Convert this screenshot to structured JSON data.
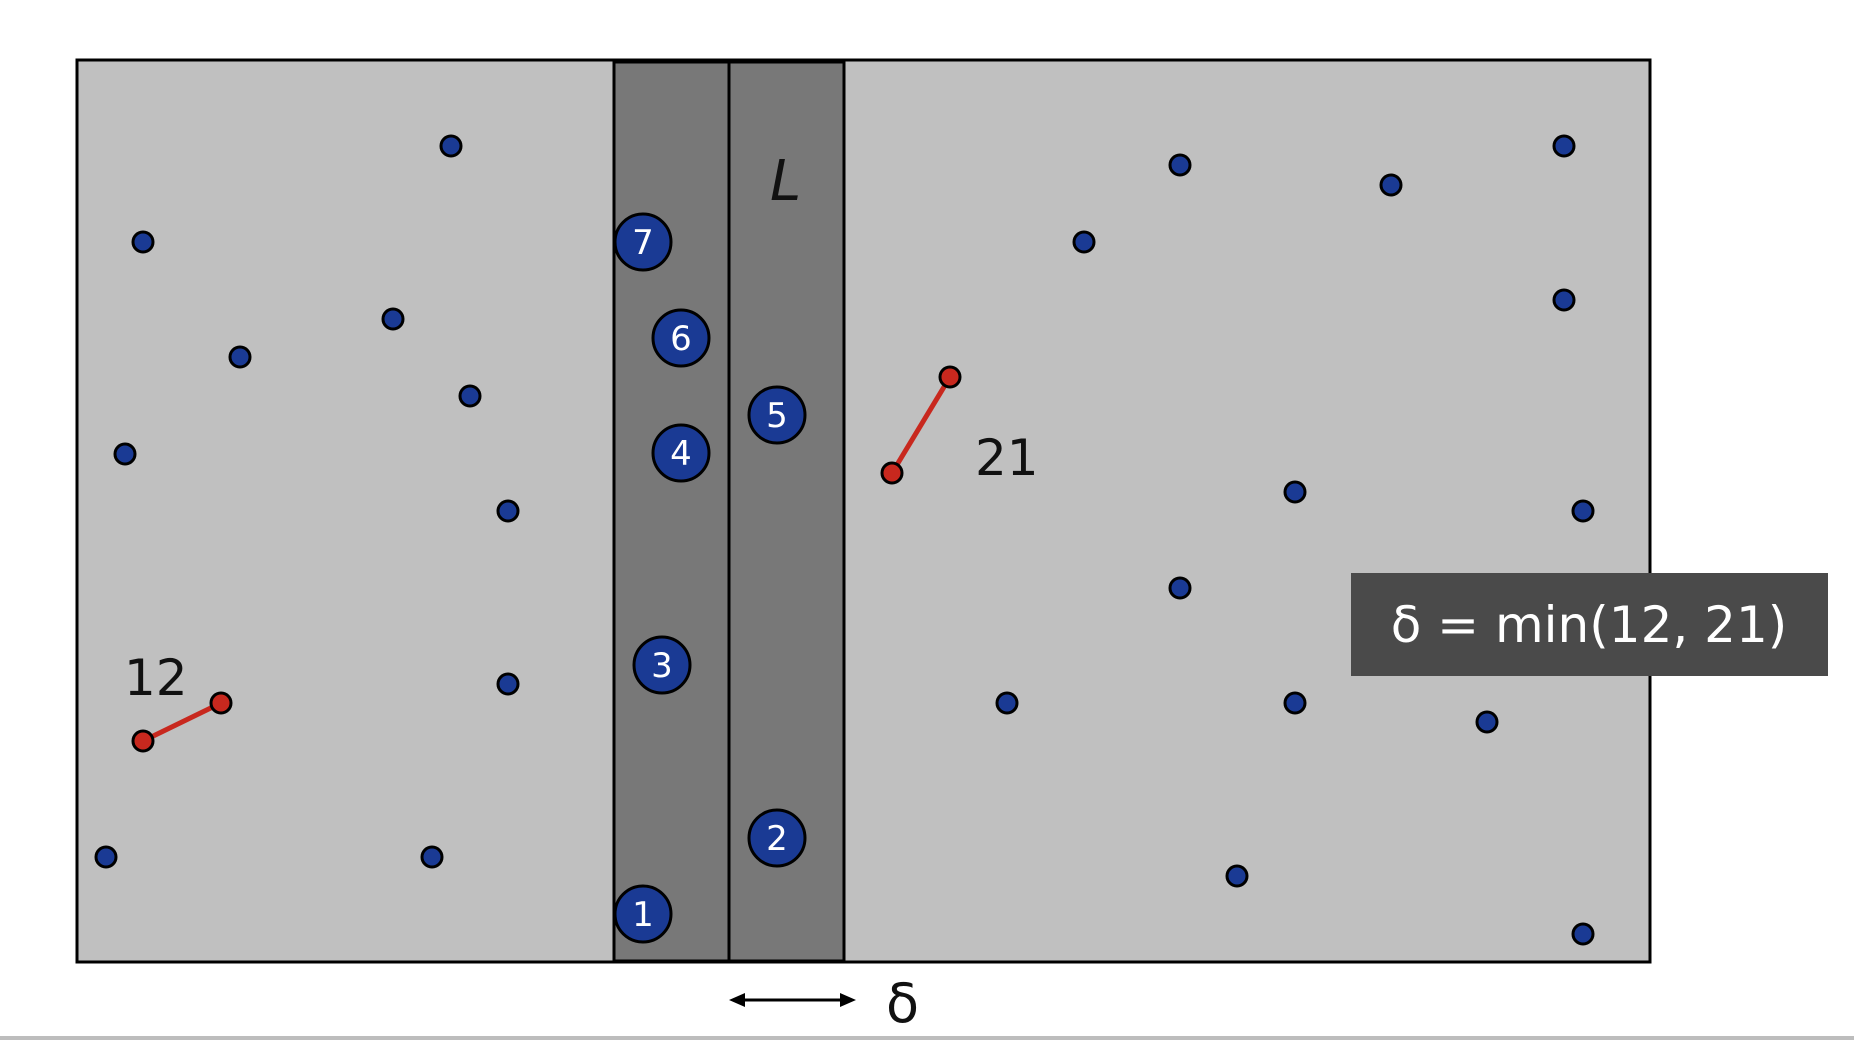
{
  "diagram": {
    "strip_label": "L",
    "delta_symbol": "δ",
    "formula": "δ = min(12, 21)",
    "left_pair_label": "12",
    "right_pair_label": "21",
    "strip_points": [
      {
        "label": "1"
      },
      {
        "label": "2"
      },
      {
        "label": "3"
      },
      {
        "label": "4"
      },
      {
        "label": "5"
      },
      {
        "label": "6"
      },
      {
        "label": "7"
      }
    ],
    "colors": {
      "region_fill": "#c0c0c0",
      "strip_fill": "#787878",
      "point_fill": "#1a3a94",
      "pair_point_fill": "#c8281e",
      "pair_line": "#c8281e",
      "formula_box_fill": "#4a4a4a",
      "formula_text": "#ffffff",
      "outline": "#000000"
    }
  }
}
